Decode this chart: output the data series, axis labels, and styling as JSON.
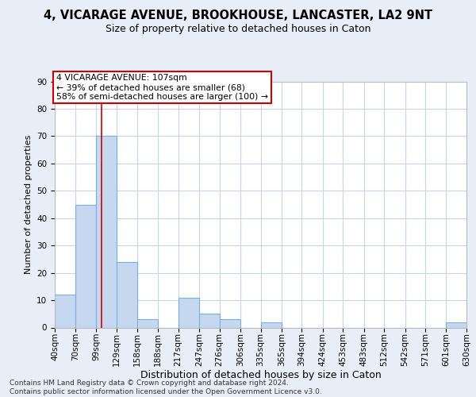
{
  "title_line1": "4, VICARAGE AVENUE, BROOKHOUSE, LANCASTER, LA2 9NT",
  "title_line2": "Size of property relative to detached houses in Caton",
  "xlabel": "Distribution of detached houses by size in Caton",
  "ylabel": "Number of detached properties",
  "bin_edges": [
    40,
    70,
    99,
    129,
    158,
    188,
    217,
    247,
    276,
    306,
    335,
    365,
    394,
    424,
    453,
    483,
    512,
    542,
    571,
    601,
    630
  ],
  "counts": [
    12,
    45,
    70,
    24,
    3,
    0,
    11,
    5,
    3,
    0,
    2,
    0,
    0,
    0,
    0,
    0,
    0,
    0,
    0,
    2
  ],
  "bar_color": "#c5d8f0",
  "bar_edgecolor": "#7aade0",
  "property_size": 107,
  "vline_color": "#cc0000",
  "annotation_text": "4 VICARAGE AVENUE: 107sqm\n← 39% of detached houses are smaller (68)\n58% of semi-detached houses are larger (100) →",
  "annotation_box_edgecolor": "#cc0000",
  "ylim": [
    0,
    90
  ],
  "yticks": [
    0,
    10,
    20,
    30,
    40,
    50,
    60,
    70,
    80,
    90
  ],
  "footer": "Contains HM Land Registry data © Crown copyright and database right 2024.\nContains public sector information licensed under the Open Government Licence v3.0.",
  "background_color": "#e8eef8",
  "plot_background": "#ffffff",
  "grid_color": "#c8d4e8",
  "title1_fontsize": 10.5,
  "title2_fontsize": 9,
  "ylabel_fontsize": 8,
  "xlabel_fontsize": 9,
  "tick_fontsize": 7.5,
  "footer_fontsize": 6.5
}
